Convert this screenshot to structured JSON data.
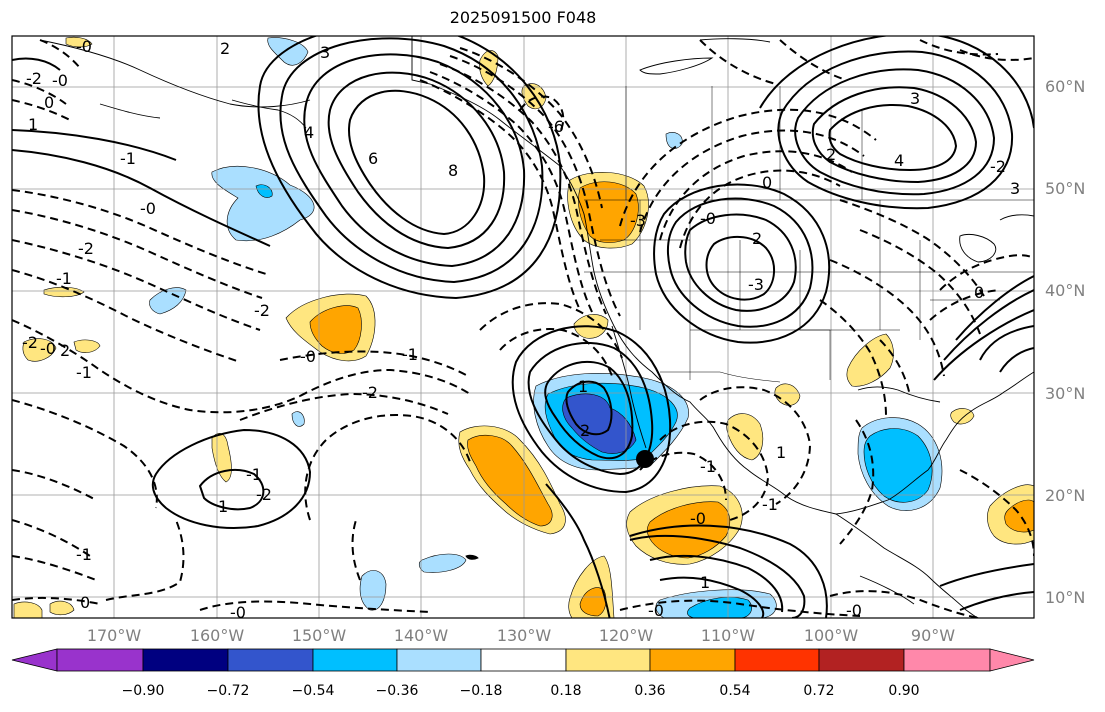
{
  "title": "2025091500 F048",
  "lat_labels": [
    "60°N",
    "50°N",
    "40°N",
    "30°N",
    "20°N",
    "10°N"
  ],
  "lon_labels": [
    "170°W",
    "160°W",
    "150°W",
    "140°W",
    "130°W",
    "120°W",
    "110°W",
    "100°W",
    "90°W"
  ],
  "colorbar": {
    "ticks": [
      "−0.90",
      "−0.72",
      "−0.54",
      "−0.36",
      "−0.18",
      "0.18",
      "0.36",
      "0.54",
      "0.72",
      "0.90"
    ],
    "colors": [
      "#9933cc",
      "#000080",
      "#3355cc",
      "#00bfff",
      "#aadfff",
      "#ffffff",
      "#ffe680",
      "#ffa500",
      "#ff3300",
      "#b22222",
      "#ff88aa"
    ]
  },
  "shading_colors": {
    "light_blue": "#aadfff",
    "blue": "#00bfff",
    "dark_blue": "#3355cc",
    "yellow": "#ffe680",
    "orange": "#ffa500"
  },
  "contour_labels": [
    {
      "text": "-0"
    },
    {
      "text": "2"
    },
    {
      "text": "3"
    },
    {
      "text": "-2"
    },
    {
      "text": "-0"
    },
    {
      "text": "1"
    },
    {
      "text": "0"
    },
    {
      "text": "-1"
    },
    {
      "text": "4"
    },
    {
      "text": "6"
    },
    {
      "text": "8"
    },
    {
      "text": "-0"
    },
    {
      "text": "-2"
    },
    {
      "text": "-1"
    },
    {
      "text": "-2"
    },
    {
      "text": "-6"
    },
    {
      "text": "-3"
    },
    {
      "text": "-0"
    },
    {
      "text": "2"
    },
    {
      "text": "-3"
    },
    {
      "text": "0"
    },
    {
      "text": "3"
    },
    {
      "text": "4"
    },
    {
      "text": "2"
    },
    {
      "text": "-0"
    },
    {
      "text": "2"
    },
    {
      "text": "-1"
    },
    {
      "text": "-2"
    },
    {
      "text": "-0"
    },
    {
      "text": "-1"
    },
    {
      "text": "-2"
    },
    {
      "text": "-1"
    },
    {
      "text": "1"
    },
    {
      "text": "-2"
    },
    {
      "text": "-1"
    },
    {
      "text": "0"
    },
    {
      "text": "1"
    },
    {
      "text": "2"
    },
    {
      "text": "-1"
    },
    {
      "text": "-0"
    },
    {
      "text": "-0"
    },
    {
      "text": "-0"
    },
    {
      "text": "-1"
    },
    {
      "text": "1"
    },
    {
      "text": "1"
    },
    {
      "text": "0"
    },
    {
      "text": "-2"
    },
    {
      "text": "3"
    },
    {
      "text": "-0"
    }
  ]
}
